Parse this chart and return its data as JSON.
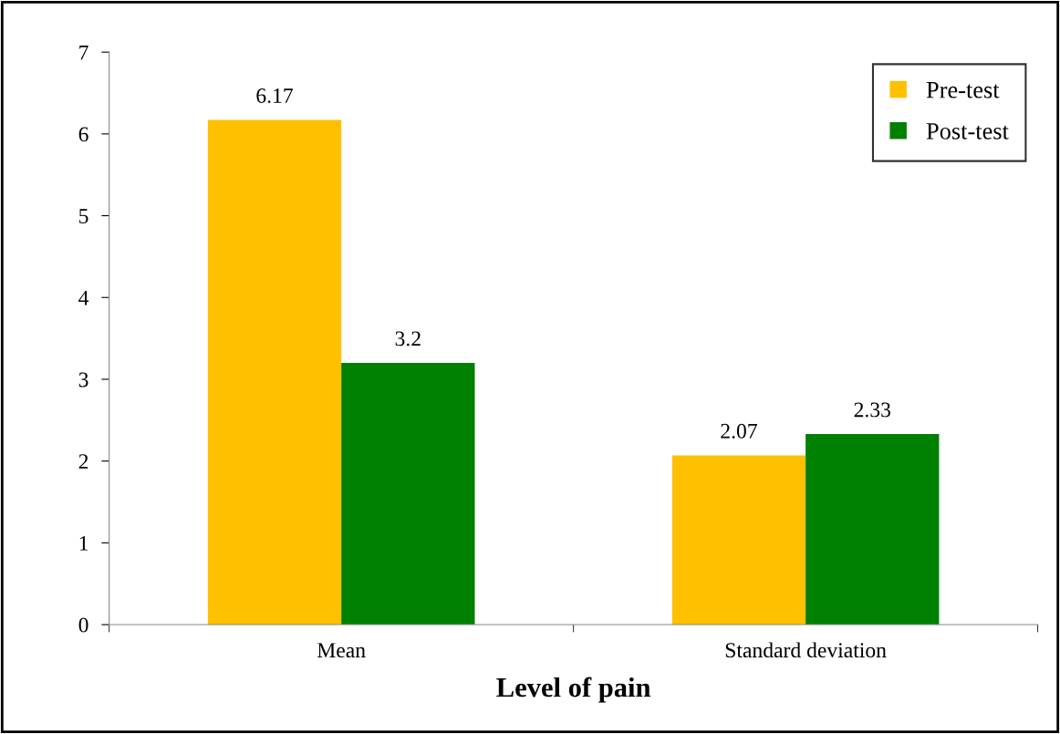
{
  "chart_data": {
    "type": "bar",
    "xlabel": "Level of pain",
    "categories": [
      "Mean",
      "Standard deviation"
    ],
    "series": [
      {
        "name": "Pre-test",
        "color": "#ffc000",
        "values": [
          6.17,
          2.07
        ]
      },
      {
        "name": "Post-test",
        "color": "#008000",
        "values": [
          3.2,
          2.33
        ]
      }
    ],
    "ylim": [
      0,
      7
    ],
    "yticks": [
      0,
      1,
      2,
      3,
      4,
      5,
      6,
      7
    ],
    "data_labels": true,
    "legend": "top right",
    "grid": false
  }
}
